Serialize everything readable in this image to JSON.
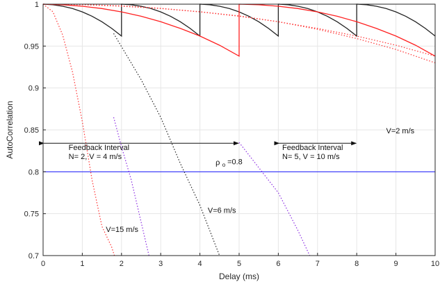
{
  "chart_data": {
    "type": "line",
    "xlabel": "Delay (ms)",
    "ylabel": "AutoCorrelation",
    "xlim": [
      0,
      10
    ],
    "ylim": [
      0.7,
      1
    ],
    "xticks": [
      "0",
      "1",
      "2",
      "3",
      "4",
      "5",
      "6",
      "7",
      "8",
      "9",
      "10"
    ],
    "yticks": [
      "0.7",
      "0.75",
      "0.8",
      "0.85",
      "0.9",
      "0.95",
      "1"
    ],
    "grid": true,
    "colors": {
      "black": "#222222",
      "red": "#ff2020",
      "blue": "#1a1aff",
      "purple_dotted": "#8a2be2",
      "red_dotted": "#ff3030",
      "axis": "#262626",
      "grid": "#e6e6e6"
    },
    "reference_line": {
      "y": 0.8,
      "color": "#1a1aff"
    },
    "series": [
      {
        "style": "solid",
        "color": "black",
        "x": [
          0,
          0.25,
          0.5,
          0.75,
          1.0,
          1.25,
          1.5,
          1.75,
          2.0,
          2.0,
          2.25,
          2.5,
          2.75,
          3.0,
          3.25,
          3.5,
          3.75,
          4.0,
          4.0,
          4.25,
          4.5,
          4.75,
          5.0,
          5.25,
          5.5,
          5.75,
          6.0,
          6.0,
          6.25,
          6.5,
          6.75,
          7.0,
          7.25,
          7.5,
          7.75,
          8.0,
          8.0,
          8.25,
          8.5,
          8.75,
          9.0,
          9.25,
          9.5,
          9.75,
          10.0
        ],
        "y": [
          1.0,
          0.9993,
          0.9975,
          0.9948,
          0.9908,
          0.9856,
          0.979,
          0.9711,
          0.962,
          1.0,
          0.9993,
          0.9975,
          0.9948,
          0.9908,
          0.9856,
          0.979,
          0.9711,
          0.962,
          1.0,
          0.9993,
          0.9975,
          0.9948,
          0.9908,
          0.9856,
          0.979,
          0.9711,
          0.962,
          1.0,
          0.9993,
          0.9975,
          0.9948,
          0.9908,
          0.9856,
          0.979,
          0.9711,
          0.962,
          1.0,
          0.9993,
          0.9975,
          0.9948,
          0.9908,
          0.9856,
          0.979,
          0.9711,
          0.962
        ]
      },
      {
        "style": "solid",
        "color": "red",
        "x": [
          0,
          0.5,
          1.0,
          1.5,
          2.0,
          2.5,
          3.0,
          3.5,
          4.0,
          4.5,
          5.0,
          5.0,
          5.5,
          6.0,
          6.5,
          7.0,
          7.5,
          8.0,
          8.5,
          9.0,
          9.5,
          10.0
        ],
        "y": [
          1.0,
          0.9993,
          0.9975,
          0.9948,
          0.9908,
          0.9856,
          0.979,
          0.9711,
          0.962,
          0.951,
          0.938,
          1.0,
          0.9993,
          0.9975,
          0.9948,
          0.9908,
          0.9856,
          0.979,
          0.9711,
          0.962,
          0.951,
          0.938
        ]
      },
      {
        "style": "dotted",
        "color": "red_dotted",
        "x": [
          0,
          0.25,
          0.5,
          0.75,
          1.0,
          1.25,
          1.5,
          1.75,
          1.82
        ],
        "y": [
          1.0,
          0.991,
          0.963,
          0.919,
          0.86,
          0.79,
          0.735,
          0.71,
          0.7
        ]
      },
      {
        "style": "dotted",
        "color": "purple_dotted",
        "x": [
          1.8,
          2.0,
          2.25,
          2.5,
          2.7
        ],
        "y": [
          0.865,
          0.83,
          0.79,
          0.74,
          0.7
        ]
      },
      {
        "style": "dotted",
        "color": "black",
        "x": [
          1.8,
          2.5,
          3.0,
          3.5,
          4.0,
          4.25,
          4.5
        ],
        "y": [
          0.965,
          0.91,
          0.865,
          0.81,
          0.76,
          0.73,
          0.7
        ]
      },
      {
        "style": "dotted",
        "color": "purple_dotted",
        "x": [
          5.0,
          5.5,
          6.0,
          6.5,
          6.8
        ],
        "y": [
          0.835,
          0.805,
          0.775,
          0.73,
          0.7
        ]
      },
      {
        "style": "dotted",
        "color": "red_dotted",
        "x": [
          0,
          1,
          2,
          3,
          4,
          5,
          6,
          7,
          8,
          9,
          10
        ],
        "y": [
          1.0,
          0.9993,
          0.9975,
          0.9948,
          0.9908,
          0.9856,
          0.979,
          0.9711,
          0.962,
          0.951,
          0.938
        ]
      },
      {
        "style": "dotted",
        "color": "red_dotted",
        "x": [
          0,
          1,
          2,
          3,
          4,
          5,
          6,
          7,
          8,
          9,
          10
        ],
        "y": [
          1.0,
          0.9995,
          0.998,
          0.995,
          0.991,
          0.986,
          0.979,
          0.97,
          0.959,
          0.946,
          0.93
        ]
      }
    ],
    "annotations": [
      {
        "text": "Feedback Interval",
        "x": 0.65,
        "y": 0.826,
        "size": "normal"
      },
      {
        "text": "N= 2, V = 4 m/s",
        "x": 0.65,
        "y": 0.815,
        "size": "normal"
      },
      {
        "text": "Feedback Interval",
        "x": 6.1,
        "y": 0.826,
        "size": "normal"
      },
      {
        "text": "N= 5, V = 10 m/s",
        "x": 6.1,
        "y": 0.815,
        "size": "normal"
      },
      {
        "text": "V=2 m/s",
        "x": 8.75,
        "y": 0.846,
        "size": "normal"
      },
      {
        "text": "V=6 m/s",
        "x": 4.2,
        "y": 0.751,
        "size": "normal"
      },
      {
        "text": "V=15 m/s",
        "x": 1.6,
        "y": 0.728,
        "size": "normal"
      },
      {
        "text": "=0.8",
        "x": 4.7,
        "y": 0.809,
        "size": "normal"
      },
      {
        "text": "ρ",
        "x": 4.4,
        "y": 0.808,
        "size": "normal"
      },
      {
        "text": "o",
        "x": 4.57,
        "y": 0.806,
        "size": "small"
      }
    ],
    "arrows": [
      {
        "x1": 0.0,
        "x2": 5.0,
        "y": 0.834
      },
      {
        "x1": 6.0,
        "x2": 8.0,
        "y": 0.834
      }
    ]
  }
}
